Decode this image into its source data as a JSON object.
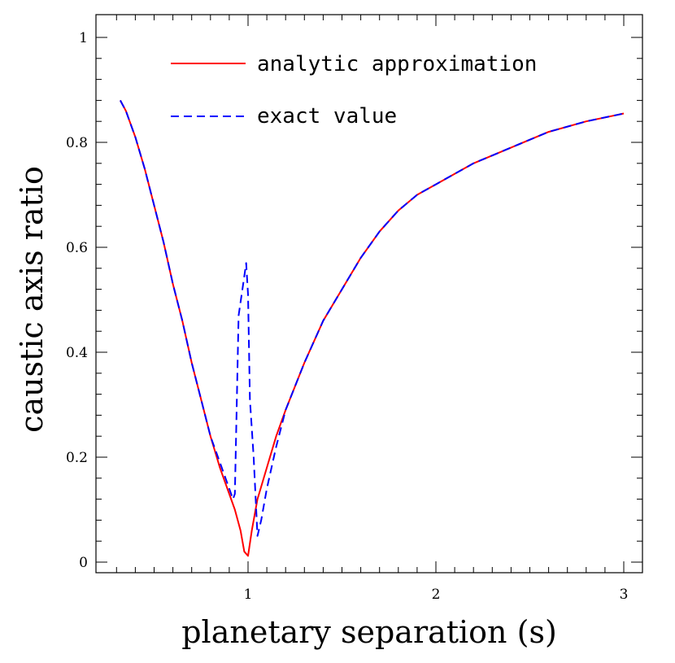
{
  "chart_data": {
    "type": "line",
    "title": "",
    "xlabel": "planetary separation (s)",
    "ylabel": "caustic axis ratio",
    "xlim": [
      0.2,
      3.1
    ],
    "ylim": [
      -0.02,
      1.02
    ],
    "x_ticks": [
      "1",
      "2",
      "3"
    ],
    "y_ticks": [
      "0",
      "0.2",
      "0.4",
      "0.6",
      "0.8",
      "1"
    ],
    "x_tick_values": [
      1,
      2,
      3
    ],
    "y_tick_values": [
      0,
      0.2,
      0.4,
      0.6,
      0.8,
      1
    ],
    "legend_position": "top-center",
    "grid": false,
    "series": [
      {
        "name": "analytic approximation",
        "color": "#ff0000",
        "style": "solid",
        "x": [
          0.32,
          0.35,
          0.4,
          0.45,
          0.5,
          0.55,
          0.6,
          0.65,
          0.7,
          0.75,
          0.8,
          0.85,
          0.88,
          0.9,
          0.93,
          0.96,
          0.98,
          1.0,
          1.02,
          1.05,
          1.1,
          1.15,
          1.2,
          1.3,
          1.4,
          1.5,
          1.6,
          1.7,
          1.8,
          1.9,
          2.0,
          2.2,
          2.4,
          2.6,
          2.8,
          3.0
        ],
        "y": [
          0.88,
          0.86,
          0.81,
          0.75,
          0.68,
          0.61,
          0.53,
          0.46,
          0.38,
          0.31,
          0.24,
          0.18,
          0.15,
          0.13,
          0.1,
          0.06,
          0.02,
          0.012,
          0.06,
          0.12,
          0.18,
          0.24,
          0.29,
          0.38,
          0.46,
          0.52,
          0.58,
          0.63,
          0.67,
          0.7,
          0.72,
          0.76,
          0.79,
          0.82,
          0.84,
          0.855
        ]
      },
      {
        "name": "exact value",
        "color": "#0000ff",
        "style": "dashed",
        "x": [
          0.32,
          0.35,
          0.4,
          0.45,
          0.5,
          0.55,
          0.6,
          0.65,
          0.7,
          0.75,
          0.8,
          0.85,
          0.88,
          0.9,
          0.92,
          0.93,
          0.95,
          0.97,
          0.99,
          1.0,
          1.01,
          1.03,
          1.05,
          1.07,
          1.1,
          1.15,
          1.2,
          1.3,
          1.4,
          1.5,
          1.6,
          1.7,
          1.8,
          1.9,
          2.0,
          2.2,
          2.4,
          2.6,
          2.8,
          3.0
        ],
        "y": [
          0.88,
          0.86,
          0.81,
          0.75,
          0.68,
          0.61,
          0.53,
          0.46,
          0.38,
          0.31,
          0.24,
          0.19,
          0.16,
          0.14,
          0.12,
          0.13,
          0.47,
          0.52,
          0.57,
          0.51,
          0.31,
          0.2,
          0.05,
          0.08,
          0.14,
          0.22,
          0.29,
          0.38,
          0.46,
          0.52,
          0.58,
          0.63,
          0.67,
          0.7,
          0.72,
          0.76,
          0.79,
          0.82,
          0.84,
          0.855
        ]
      }
    ]
  }
}
